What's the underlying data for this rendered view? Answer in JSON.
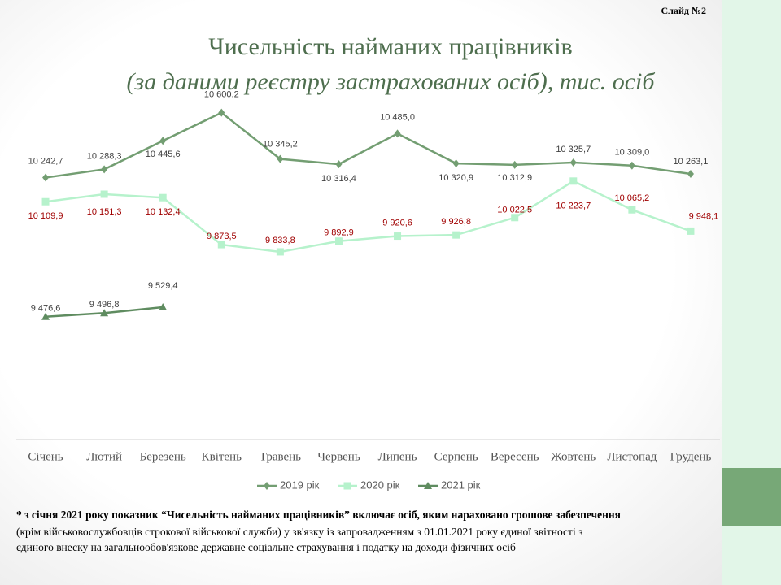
{
  "slide_label": "Слайд №2",
  "chart_data": {
    "type": "line",
    "title": "Чисельність найманих працівників",
    "subtitle": "(за даними реєстру застрахованих осіб), тис. осіб",
    "categories": [
      "Січень",
      "Лютий",
      "Березень",
      "Квітень",
      "Травень",
      "Червень",
      "Липень",
      "Серпень",
      "Вересень",
      "Жовтень",
      "Листопад",
      "Грудень"
    ],
    "ylim": [
      8800,
      10800
    ],
    "series": [
      {
        "name": "2019 рік",
        "color": "#739e72",
        "marker": "diamond",
        "values": [
          10242.7,
          10288.3,
          10445.6,
          10600.2,
          10345.2,
          10316.4,
          10485.0,
          10320.9,
          10312.9,
          10325.7,
          10309.0,
          10263.1
        ],
        "value_labels": [
          "10 242,7",
          "10 288,3",
          "10 445,6",
          "10 600,2",
          "10 345,2",
          "10 316,4",
          "10 485,0",
          "10 320,9",
          "10 312,9",
          "10 325,7",
          "10 309,0",
          "10 263,1"
        ]
      },
      {
        "name": "2020 рік",
        "color": "#b6f2cc",
        "marker": "square",
        "values": [
          10109.9,
          10151.3,
          10132.4,
          9873.5,
          9833.8,
          9892.9,
          9920.6,
          9926.8,
          10022.5,
          10223.7,
          10065.2,
          9948.1
        ],
        "value_labels": [
          "10 109,9",
          "10 151,3",
          "10 132,4",
          "9 873,5",
          "9 833,8",
          "9 892,9",
          "9 920,6",
          "9 926,8",
          "10 022,5",
          "10 223,7",
          "10 065,2",
          "9 948,1"
        ]
      },
      {
        "name": "2021 рік",
        "color": "#5f8c60",
        "marker": "triangle",
        "values": [
          9476.6,
          9496.8,
          9529.4,
          null,
          null,
          null,
          null,
          null,
          null,
          null,
          null,
          null
        ],
        "value_labels": [
          "9 476,6",
          "9 496,8",
          "9 529,4",
          null,
          null,
          null,
          null,
          null,
          null,
          null,
          null,
          null
        ]
      }
    ]
  },
  "footnote": {
    "lines": [
      "* з січня 2021 року показник “Чисельність найманих працівників” включає осіб, яким нараховано грошове забезпечення",
      "(крім військовослужбовців строкової військової служби) у зв'язку із запровадженням з 01.01.2021 року єдиної звітності з",
      "єдиного внеску на загальнообов'язкове державне соціальне страхування і податку на доходи фізичних осіб"
    ]
  }
}
